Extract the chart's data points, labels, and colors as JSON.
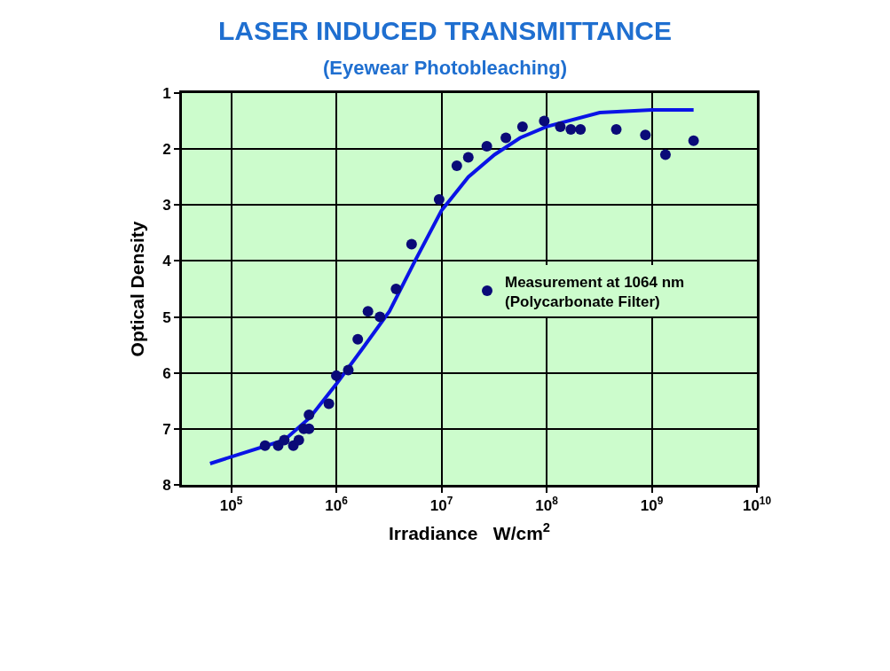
{
  "chart_data": {
    "type": "scatter",
    "title": "LASER INDUCED TRANSMITTANCE",
    "subtitle": "(Eyewear Photobleaching)",
    "xlabel": "Irradiance   W/cm$^{2}$",
    "ylabel": "Optical Density",
    "log": "x",
    "xlim": [
      34000,
      10000000000
    ],
    "xticks": [
      {
        "value": 100000,
        "label": "10$^{5}$"
      },
      {
        "value": 1000000,
        "label": "10$^{6}$"
      },
      {
        "value": 10000000,
        "label": "10$^{7}$"
      },
      {
        "value": 100000000,
        "label": "10$^{8}$"
      },
      {
        "value": 1000000000,
        "label": "10$^{9}$"
      },
      {
        "value": 10000000000,
        "label": "10$^{10}$"
      }
    ],
    "ylim": [
      8,
      1
    ],
    "yticks": [
      1,
      2,
      3,
      4,
      5,
      6,
      7,
      8
    ],
    "grid": true,
    "legend": "right",
    "series": [
      {
        "name": "Measurement at 1064 nm\n(Polycarbonate Filter)",
        "marker": "circle",
        "color": "#0a0a78",
        "x": [
          210000,
          280000,
          320000,
          390000,
          440000,
          490000,
          550000,
          550000,
          850000,
          1000000,
          1300000,
          1600000,
          2000000,
          2600000,
          3700000,
          5200000,
          9500000,
          14000000,
          18000000,
          27000000,
          41000000,
          59000000,
          95000000,
          135000000,
          170000000,
          210000000,
          460000000,
          870000000,
          1350000000,
          2500000000
        ],
        "values": [
          7.3,
          7.3,
          7.2,
          7.3,
          7.2,
          7.0,
          7.0,
          6.75,
          6.55,
          6.05,
          5.95,
          5.4,
          4.9,
          5.0,
          4.5,
          3.7,
          2.9,
          2.3,
          2.15,
          1.95,
          1.8,
          1.6,
          1.5,
          1.6,
          1.65,
          1.65,
          1.65,
          1.75,
          2.1,
          1.85
        ]
      },
      {
        "type": "line",
        "color": "#0a14e6",
        "line_style": "solid",
        "x": [
          63000,
          100000,
          320000,
          560000,
          1000000,
          1800000,
          3200000,
          5600000,
          10000000,
          18000000,
          32000000,
          56000000,
          100000000,
          320000000,
          1000000000,
          2500000000
        ],
        "values": [
          7.62,
          7.5,
          7.2,
          6.8,
          6.2,
          5.55,
          4.9,
          4.0,
          3.1,
          2.5,
          2.1,
          1.8,
          1.6,
          1.35,
          1.3,
          1.3
        ]
      }
    ]
  }
}
